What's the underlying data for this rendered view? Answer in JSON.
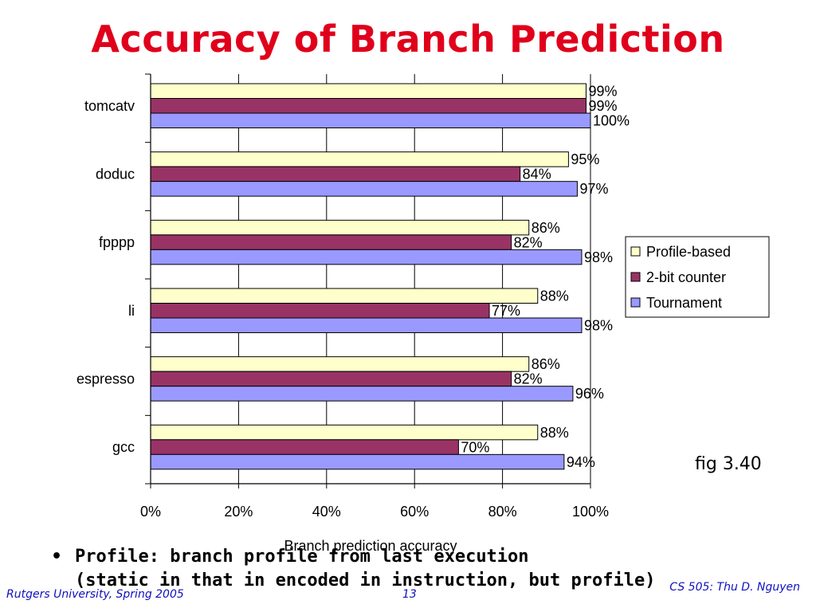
{
  "slide": {
    "title": "Accuracy of Branch Prediction",
    "fig_label": "fig 3.40",
    "bullet": {
      "symbol": "•",
      "line1": "Profile: branch profile from last execution",
      "line2": "(static in that in encoded in instruction, but profile)"
    },
    "footer_left": "Rutgers University, Spring 2005",
    "page_number": "13",
    "footer_right": "CS 505: Thu D. Nguyen"
  },
  "colors": {
    "title": "#e0001b",
    "footer": "#1010c0",
    "profile": "#ffffcc",
    "counter": "#993366",
    "tournament": "#9999ff"
  },
  "chart_data": {
    "type": "bar",
    "orientation": "horizontal",
    "categories": [
      "tomcatv",
      "doduc",
      "fpppp",
      "li",
      "espresso",
      "gcc"
    ],
    "series": [
      {
        "name": "Profile-based",
        "values": [
          99,
          95,
          86,
          88,
          86,
          88
        ],
        "labels": [
          "99%",
          "95%",
          "86%",
          "88%",
          "86%",
          "88%"
        ],
        "color": "#ffffcc"
      },
      {
        "name": "2-bit counter",
        "values": [
          99,
          84,
          82,
          77,
          82,
          70
        ],
        "labels": [
          "99%",
          "84%",
          "82%",
          "77%",
          "82%",
          "70%"
        ],
        "color": "#993366"
      },
      {
        "name": "Tournament",
        "values": [
          100,
          97,
          98,
          98,
          96,
          94
        ],
        "labels": [
          "100%",
          "97%",
          "98%",
          "98%",
          "96%",
          "94%"
        ],
        "color": "#9999ff"
      }
    ],
    "xlim": [
      0,
      100
    ],
    "xticks": [
      0,
      20,
      40,
      60,
      80,
      100
    ],
    "xtick_labels": [
      "0%",
      "20%",
      "40%",
      "60%",
      "80%",
      "100%"
    ],
    "xlabel": "Branch prediction accuracy",
    "ylabel": "",
    "grid": "vertical",
    "legend_position": "right"
  }
}
